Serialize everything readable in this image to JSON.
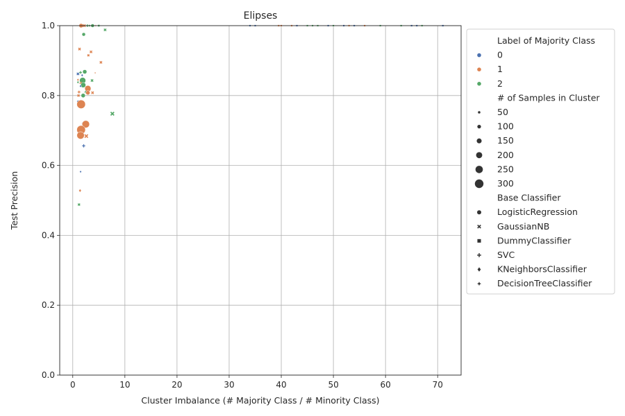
{
  "chart_data": {
    "type": "scatter",
    "title": "Elipses",
    "xlabel": "Cluster Imbalance (# Majority Class / # Minority Class)",
    "ylabel": "Test Precision",
    "xlim": [
      -2.5,
      74.5
    ],
    "ylim": [
      0.0,
      1.0
    ],
    "xticks": [
      "0",
      "10",
      "20",
      "30",
      "40",
      "50",
      "60",
      "70"
    ],
    "yticks": [
      "0.0",
      "0.2",
      "0.4",
      "0.6",
      "0.8",
      "1.0"
    ],
    "grid": true,
    "legend_placement": "outside-right",
    "colors": {
      "0": "#4c72b0",
      "1": "#dd8452",
      "2": "#55a868"
    },
    "legend": {
      "hue_title": "Label of Majority Class",
      "hue_entries": [
        "0",
        "1",
        "2"
      ],
      "size_title": "# of Samples in Cluster",
      "size_entries": [
        "50",
        "100",
        "150",
        "200",
        "250",
        "300"
      ],
      "style_title": "Base Classifier",
      "style_entries": [
        "LogisticRegression",
        "GaussianNB",
        "DummyClassifier",
        "SVC",
        "KNeighborsClassifier",
        "DecisionTreeClassifier"
      ]
    },
    "points": [
      {
        "x": 1.6,
        "y": 1.0,
        "label": "1",
        "n": 120,
        "clf": "LogisticRegression"
      },
      {
        "x": 2.2,
        "y": 1.0,
        "label": "1",
        "n": 80,
        "clf": "GaussianNB"
      },
      {
        "x": 2.8,
        "y": 1.0,
        "label": "2",
        "n": 60,
        "clf": "SVC"
      },
      {
        "x": 3.2,
        "y": 1.0,
        "label": "2",
        "n": 60,
        "clf": "KNeighborsClassifier"
      },
      {
        "x": 3.8,
        "y": 1.0,
        "label": "2",
        "n": 90,
        "clf": "LogisticRegression"
      },
      {
        "x": 4.4,
        "y": 1.0,
        "label": "1",
        "n": 50,
        "clf": "DecisionTreeClassifier"
      },
      {
        "x": 5.0,
        "y": 1.0,
        "label": "2",
        "n": 50,
        "clf": "DummyClassifier"
      },
      {
        "x": 34,
        "y": 1.0,
        "label": "0",
        "n": 40,
        "clf": "DummyClassifier"
      },
      {
        "x": 35,
        "y": 1.0,
        "label": "0",
        "n": 40,
        "clf": "DummyClassifier"
      },
      {
        "x": 39.5,
        "y": 1.0,
        "label": "1",
        "n": 40,
        "clf": "DummyClassifier"
      },
      {
        "x": 40,
        "y": 1.0,
        "label": "1",
        "n": 40,
        "clf": "DummyClassifier"
      },
      {
        "x": 42,
        "y": 1.0,
        "label": "1",
        "n": 40,
        "clf": "DummyClassifier"
      },
      {
        "x": 43,
        "y": 1.0,
        "label": "0",
        "n": 40,
        "clf": "DummyClassifier"
      },
      {
        "x": 45,
        "y": 1.0,
        "label": "2",
        "n": 40,
        "clf": "DummyClassifier"
      },
      {
        "x": 46,
        "y": 1.0,
        "label": "2",
        "n": 40,
        "clf": "DummyClassifier"
      },
      {
        "x": 47,
        "y": 1.0,
        "label": "2",
        "n": 40,
        "clf": "DummyClassifier"
      },
      {
        "x": 49,
        "y": 1.0,
        "label": "0",
        "n": 40,
        "clf": "DummyClassifier"
      },
      {
        "x": 50,
        "y": 1.0,
        "label": "2",
        "n": 40,
        "clf": "DummyClassifier"
      },
      {
        "x": 52,
        "y": 1.0,
        "label": "0",
        "n": 40,
        "clf": "DummyClassifier"
      },
      {
        "x": 53,
        "y": 1.0,
        "label": "1",
        "n": 40,
        "clf": "DummyClassifier"
      },
      {
        "x": 54,
        "y": 1.0,
        "label": "0",
        "n": 40,
        "clf": "DummyClassifier"
      },
      {
        "x": 56,
        "y": 1.0,
        "label": "1",
        "n": 40,
        "clf": "DummyClassifier"
      },
      {
        "x": 59,
        "y": 1.0,
        "label": "2",
        "n": 40,
        "clf": "DummyClassifier"
      },
      {
        "x": 63,
        "y": 1.0,
        "label": "2",
        "n": 40,
        "clf": "DummyClassifier"
      },
      {
        "x": 65,
        "y": 1.0,
        "label": "0",
        "n": 40,
        "clf": "DummyClassifier"
      },
      {
        "x": 66,
        "y": 1.0,
        "label": "0",
        "n": 40,
        "clf": "DummyClassifier"
      },
      {
        "x": 67,
        "y": 1.0,
        "label": "2",
        "n": 40,
        "clf": "DummyClassifier"
      },
      {
        "x": 71,
        "y": 1.0,
        "label": "0",
        "n": 40,
        "clf": "DummyClassifier"
      },
      {
        "x": 6.2,
        "y": 0.988,
        "label": "2",
        "n": 70,
        "clf": "GaussianNB"
      },
      {
        "x": 2.1,
        "y": 0.975,
        "label": "2",
        "n": 90,
        "clf": "LogisticRegression"
      },
      {
        "x": 1.3,
        "y": 0.933,
        "label": "1",
        "n": 70,
        "clf": "GaussianNB"
      },
      {
        "x": 3.5,
        "y": 0.925,
        "label": "1",
        "n": 70,
        "clf": "GaussianNB"
      },
      {
        "x": 3.0,
        "y": 0.915,
        "label": "1",
        "n": 50,
        "clf": "GaussianNB"
      },
      {
        "x": 5.4,
        "y": 0.895,
        "label": "1",
        "n": 70,
        "clf": "GaussianNB"
      },
      {
        "x": 2.3,
        "y": 0.868,
        "label": "2",
        "n": 120,
        "clf": "LogisticRegression"
      },
      {
        "x": 1.5,
        "y": 0.866,
        "label": "2",
        "n": 60,
        "clf": "SVC"
      },
      {
        "x": 4.3,
        "y": 0.865,
        "label": "1",
        "n": 50,
        "clf": "DecisionTreeClassifier"
      },
      {
        "x": 1.0,
        "y": 0.862,
        "label": "0",
        "n": 70,
        "clf": "GaussianNB"
      },
      {
        "x": 1.8,
        "y": 0.858,
        "label": "0",
        "n": 60,
        "clf": "KNeighborsClassifier"
      },
      {
        "x": 1.0,
        "y": 0.845,
        "label": "1",
        "n": 60,
        "clf": "KNeighborsClassifier"
      },
      {
        "x": 1.9,
        "y": 0.843,
        "label": "2",
        "n": 200,
        "clf": "LogisticRegression"
      },
      {
        "x": 3.7,
        "y": 0.843,
        "label": "2",
        "n": 70,
        "clf": "GaussianNB"
      },
      {
        "x": 1.0,
        "y": 0.838,
        "label": "2",
        "n": 60,
        "clf": "KNeighborsClassifier"
      },
      {
        "x": 1.6,
        "y": 0.835,
        "label": "1",
        "n": 90,
        "clf": "SVC"
      },
      {
        "x": 2.0,
        "y": 0.83,
        "label": "2",
        "n": 160,
        "clf": "LogisticRegression"
      },
      {
        "x": 1.5,
        "y": 0.827,
        "label": "0",
        "n": 60,
        "clf": "KNeighborsClassifier"
      },
      {
        "x": 2.9,
        "y": 0.82,
        "label": "1",
        "n": 200,
        "clf": "LogisticRegression"
      },
      {
        "x": 1.2,
        "y": 0.81,
        "label": "1",
        "n": 70,
        "clf": "SVC"
      },
      {
        "x": 2.5,
        "y": 0.81,
        "label": "2",
        "n": 60,
        "clf": "SVC"
      },
      {
        "x": 3.8,
        "y": 0.808,
        "label": "1",
        "n": 70,
        "clf": "GaussianNB"
      },
      {
        "x": 1.1,
        "y": 0.8,
        "label": "1",
        "n": 60,
        "clf": "GaussianNB"
      },
      {
        "x": 2.9,
        "y": 0.808,
        "label": "1",
        "n": 120,
        "clf": "LogisticRegression"
      },
      {
        "x": 2.0,
        "y": 0.8,
        "label": "2",
        "n": 120,
        "clf": "LogisticRegression"
      },
      {
        "x": 1.0,
        "y": 0.783,
        "label": "0",
        "n": 70,
        "clf": "KNeighborsClassifier"
      },
      {
        "x": 1.6,
        "y": 0.775,
        "label": "1",
        "n": 300,
        "clf": "LogisticRegression"
      },
      {
        "x": 7.6,
        "y": 0.748,
        "label": "2",
        "n": 130,
        "clf": "GaussianNB"
      },
      {
        "x": 1.9,
        "y": 0.72,
        "label": "0",
        "n": 60,
        "clf": "KNeighborsClassifier"
      },
      {
        "x": 2.5,
        "y": 0.718,
        "label": "1",
        "n": 250,
        "clf": "LogisticRegression"
      },
      {
        "x": 1.6,
        "y": 0.702,
        "label": "1",
        "n": 300,
        "clf": "LogisticRegression"
      },
      {
        "x": 1.5,
        "y": 0.686,
        "label": "1",
        "n": 250,
        "clf": "LogisticRegression"
      },
      {
        "x": 2.6,
        "y": 0.684,
        "label": "1",
        "n": 120,
        "clf": "GaussianNB"
      },
      {
        "x": 2.1,
        "y": 0.656,
        "label": "0",
        "n": 80,
        "clf": "SVC"
      },
      {
        "x": 1.5,
        "y": 0.582,
        "label": "0",
        "n": 50,
        "clf": "KNeighborsClassifier"
      },
      {
        "x": 1.4,
        "y": 0.528,
        "label": "1",
        "n": 80,
        "clf": "KNeighborsClassifier"
      },
      {
        "x": 1.2,
        "y": 0.488,
        "label": "2",
        "n": 60,
        "clf": "GaussianNB"
      }
    ]
  }
}
